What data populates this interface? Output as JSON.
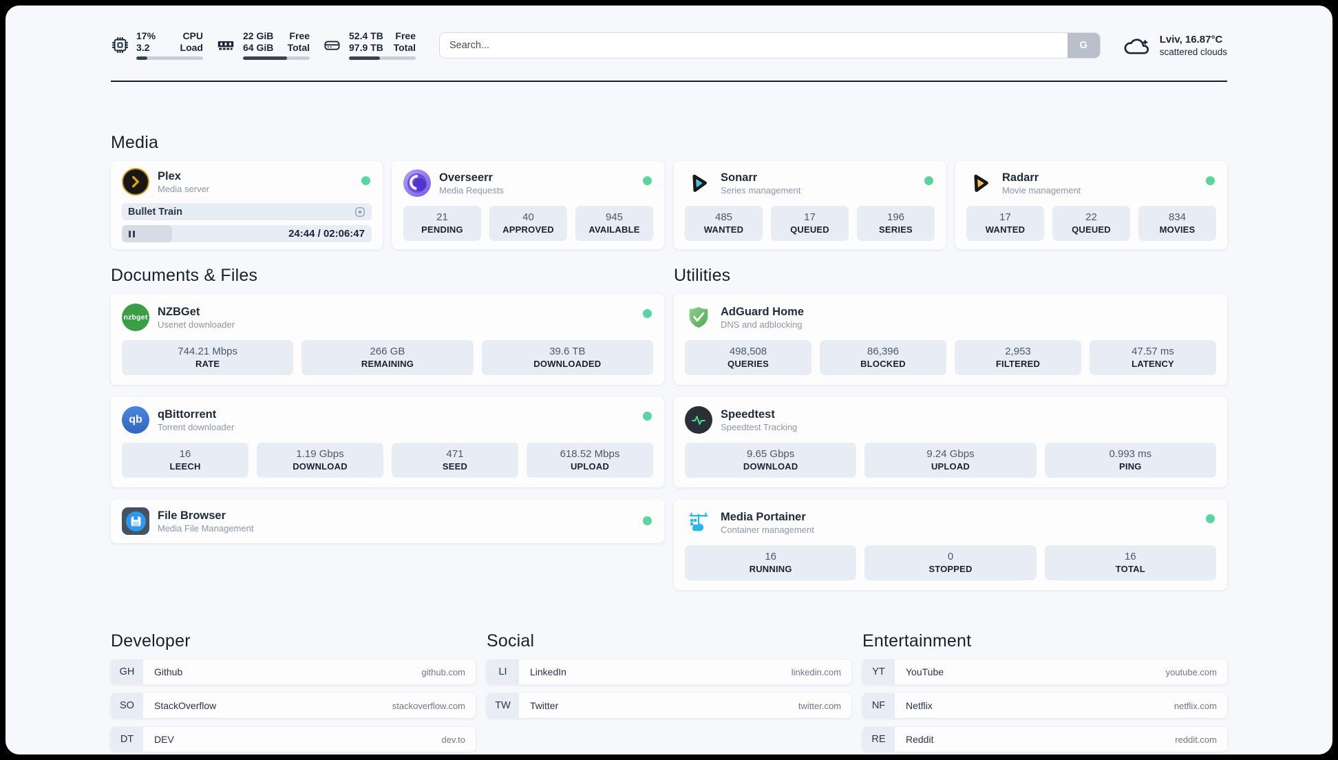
{
  "colors": {
    "status_green": "#57d69e",
    "accent_dark": "#141d2b"
  },
  "header": {
    "metrics": [
      {
        "icon": "cpu-icon",
        "line1": "17%",
        "line2": "3.2",
        "label1": "CPU",
        "label2": "Load",
        "progress": 17
      },
      {
        "icon": "memory-icon",
        "line1": "22 GiB",
        "line2": "64 GiB",
        "label1": "Free",
        "label2": "Total",
        "progress": 66
      },
      {
        "icon": "disk-icon",
        "line1": "52.4 TB",
        "line2": "97.9 TB",
        "label1": "Free",
        "label2": "Total",
        "progress": 46
      }
    ],
    "search": {
      "placeholder": "Search...",
      "button": "G"
    },
    "weather": {
      "line1": "Lviv, 16.87°C",
      "line2": "scattered clouds"
    }
  },
  "media": {
    "title": "Media",
    "plex": {
      "name": "Plex",
      "desc": "Media server",
      "now_playing": "Bullet Train",
      "time": "24:44 / 02:06:47",
      "progress": 20
    },
    "cards": [
      {
        "name": "Overseerr",
        "desc": "Media Requests",
        "stats": [
          {
            "value": "21",
            "label": "PENDING"
          },
          {
            "value": "40",
            "label": "APPROVED"
          },
          {
            "value": "945",
            "label": "AVAILABLE"
          }
        ]
      },
      {
        "name": "Sonarr",
        "desc": "Series management",
        "stats": [
          {
            "value": "485",
            "label": "WANTED"
          },
          {
            "value": "17",
            "label": "QUEUED"
          },
          {
            "value": "196",
            "label": "SERIES"
          }
        ]
      },
      {
        "name": "Radarr",
        "desc": "Movie management",
        "stats": [
          {
            "value": "17",
            "label": "WANTED"
          },
          {
            "value": "22",
            "label": "QUEUED"
          },
          {
            "value": "834",
            "label": "MOVIES"
          }
        ]
      }
    ]
  },
  "documents": {
    "title": "Documents & Files",
    "nzbget": {
      "name": "NZBGet",
      "desc": "Usenet downloader",
      "stats": [
        {
          "value": "744.21 Mbps",
          "label": "RATE"
        },
        {
          "value": "266 GB",
          "label": "REMAINING"
        },
        {
          "value": "39.6 TB",
          "label": "DOWNLOADED"
        }
      ]
    },
    "qbittorrent": {
      "name": "qBittorrent",
      "desc": "Torrent downloader",
      "stats": [
        {
          "value": "16",
          "label": "LEECH"
        },
        {
          "value": "1.19 Gbps",
          "label": "DOWNLOAD"
        },
        {
          "value": "471",
          "label": "SEED"
        },
        {
          "value": "618.52 Mbps",
          "label": "UPLOAD"
        }
      ]
    },
    "filebrowser": {
      "name": "File Browser",
      "desc": "Media File Management"
    }
  },
  "utilities": {
    "title": "Utilities",
    "adguard": {
      "name": "AdGuard Home",
      "desc": "DNS and adblocking",
      "stats": [
        {
          "value": "498,508",
          "label": "QUERIES"
        },
        {
          "value": "86,396",
          "label": "BLOCKED"
        },
        {
          "value": "2,953",
          "label": "FILTERED"
        },
        {
          "value": "47.57 ms",
          "label": "LATENCY"
        }
      ]
    },
    "speedtest": {
      "name": "Speedtest",
      "desc": "Speedtest Tracking",
      "stats": [
        {
          "value": "9.65 Gbps",
          "label": "DOWNLOAD"
        },
        {
          "value": "9.24 Gbps",
          "label": "UPLOAD"
        },
        {
          "value": "0.993 ms",
          "label": "PING"
        }
      ]
    },
    "portainer": {
      "name": "Media Portainer",
      "desc": "Container management",
      "stats": [
        {
          "value": "16",
          "label": "RUNNING"
        },
        {
          "value": "0",
          "label": "STOPPED"
        },
        {
          "value": "16",
          "label": "TOTAL"
        }
      ]
    }
  },
  "links": {
    "developer": {
      "title": "Developer",
      "items": [
        {
          "badge": "GH",
          "name": "Github",
          "url": "github.com"
        },
        {
          "badge": "SO",
          "name": "StackOverflow",
          "url": "stackoverflow.com"
        },
        {
          "badge": "DT",
          "name": "DEV",
          "url": "dev.to"
        }
      ]
    },
    "social": {
      "title": "Social",
      "items": [
        {
          "badge": "LI",
          "name": "LinkedIn",
          "url": "linkedin.com"
        },
        {
          "badge": "TW",
          "name": "Twitter",
          "url": "twitter.com"
        }
      ]
    },
    "entertainment": {
      "title": "Entertainment",
      "items": [
        {
          "badge": "YT",
          "name": "YouTube",
          "url": "youtube.com"
        },
        {
          "badge": "NF",
          "name": "Netflix",
          "url": "netflix.com"
        },
        {
          "badge": "RE",
          "name": "Reddit",
          "url": "reddit.com"
        }
      ]
    }
  }
}
